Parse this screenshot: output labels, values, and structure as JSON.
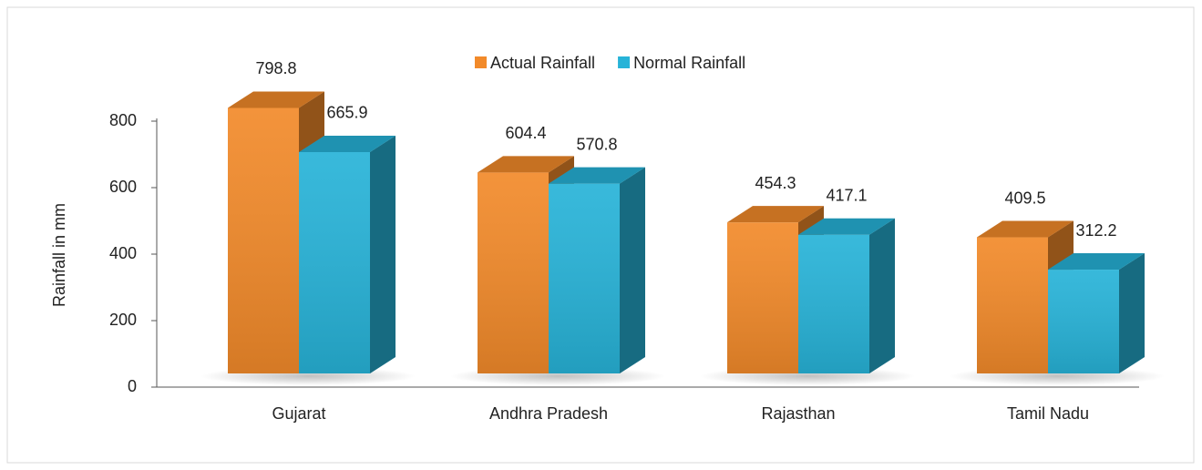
{
  "chart_data": {
    "type": "bar3d",
    "categories": [
      "Gujarat",
      "Andhra Pradesh",
      "Rajasthan",
      "Tamil Nadu"
    ],
    "series": [
      {
        "name": "Actual Rainfall",
        "color": "#f28a2a",
        "values": [
          798.8,
          604.4,
          454.3,
          409.5
        ]
      },
      {
        "name": "Normal Rainfall",
        "color": "#27b3d8",
        "values": [
          665.9,
          570.8,
          417.1,
          312.2
        ]
      }
    ],
    "y_label": "Rainfall in mm",
    "ylim": [
      0,
      800
    ],
    "yticks": [
      0,
      200,
      400,
      600,
      800
    ],
    "legend": "top"
  }
}
